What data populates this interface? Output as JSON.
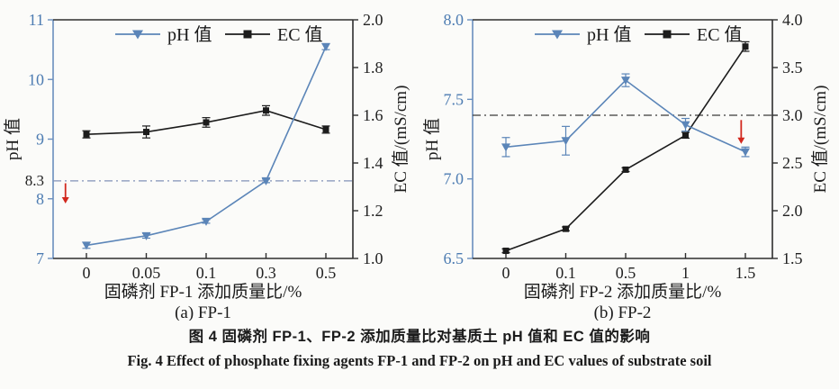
{
  "figure": {
    "caption_zh": "图 4  固磷剂 FP-1、FP-2 添加质量比对基质土 pH 值和 EC 值的影响",
    "caption_en": "Fig. 4  Effect of phosphate fixing agents FP-1 and FP-2 on pH and EC values of substrate soil"
  },
  "colors": {
    "ph_series": "#5b85b8",
    "ec_series": "#1c1c1c",
    "arrow": "#d2281e",
    "axis_dark": "#2e2e2e",
    "axis_blue": "#6a8fbe",
    "tick_label_blue": "#4d7cb2",
    "tick_label_dark": "#222222"
  },
  "chart_data": [
    {
      "type": "line",
      "title": "(a) FP-1",
      "xlabel": "固磷剂 FP-1 添加质量比/%",
      "ylabel_left": "pH 值",
      "ylabel_right": "EC 值/(mS/cm)",
      "categories": [
        "0",
        "0.05",
        "0.1",
        "0.3",
        "0.5"
      ],
      "legend": [
        "pH 值",
        "EC 值"
      ],
      "y_left": {
        "min": 7.0,
        "max": 11.0,
        "ticks": [
          "7",
          "8",
          "9",
          "10",
          "11"
        ]
      },
      "y_right": {
        "min": 1.0,
        "max": 2.0,
        "ticks": [
          "1.0",
          "1.2",
          "1.4",
          "1.6",
          "1.8",
          "2.0"
        ]
      },
      "grid": false,
      "legend_position": "top-center",
      "series": [
        {
          "name": "pH 值",
          "axis": "left",
          "marker": "triangle-down",
          "values": [
            7.22,
            7.38,
            7.62,
            8.3,
            10.55
          ],
          "errors": [
            0.05,
            0.04,
            0.03,
            0.03,
            0.05
          ]
        },
        {
          "name": "EC 值",
          "axis": "right",
          "marker": "square",
          "values": [
            1.52,
            1.53,
            1.57,
            1.62,
            1.54
          ],
          "errors": [
            0.015,
            0.025,
            0.02,
            0.02,
            0.015
          ]
        }
      ],
      "refline": {
        "axis": "left",
        "value": 8.3,
        "label": "8.3",
        "style": "dash-dot",
        "color": "#8292b8"
      },
      "arrow": {
        "x_index": -0.35,
        "from": 8.26,
        "to": 7.92
      }
    },
    {
      "type": "line",
      "title": "(b) FP-2",
      "xlabel": "固磷剂 FP-2 添加质量比/%",
      "ylabel_left": "pH 值",
      "ylabel_right": "EC 值/(mS/cm)",
      "categories": [
        "0",
        "0.1",
        "0.5",
        "1",
        "1.5"
      ],
      "legend": [
        "pH 值",
        "EC 值"
      ],
      "y_left": {
        "min": 6.5,
        "max": 8.0,
        "ticks": [
          "6.5",
          "7.0",
          "7.5",
          "8.0"
        ]
      },
      "y_right": {
        "min": 1.5,
        "max": 4.0,
        "ticks": [
          "1.5",
          "2.0",
          "2.5",
          "3.0",
          "3.5",
          "4.0"
        ]
      },
      "grid": false,
      "legend_position": "top-center",
      "series": [
        {
          "name": "pH 值",
          "axis": "left",
          "marker": "triangle-down",
          "values": [
            7.2,
            7.24,
            7.62,
            7.34,
            7.17
          ],
          "errors": [
            0.06,
            0.09,
            0.04,
            0.04,
            0.03
          ]
        },
        {
          "name": "EC 值",
          "axis": "right",
          "marker": "square",
          "values": [
            1.58,
            1.81,
            2.43,
            2.79,
            3.72
          ],
          "errors": [
            0.02,
            0.02,
            0.02,
            0.03,
            0.05
          ]
        }
      ],
      "refline": {
        "axis": "left",
        "value": 7.4,
        "label": "",
        "style": "dash-dot",
        "color": "#3a3a3a"
      },
      "arrow": {
        "x_index": 3.93,
        "from": 7.37,
        "to": 7.22
      }
    }
  ]
}
